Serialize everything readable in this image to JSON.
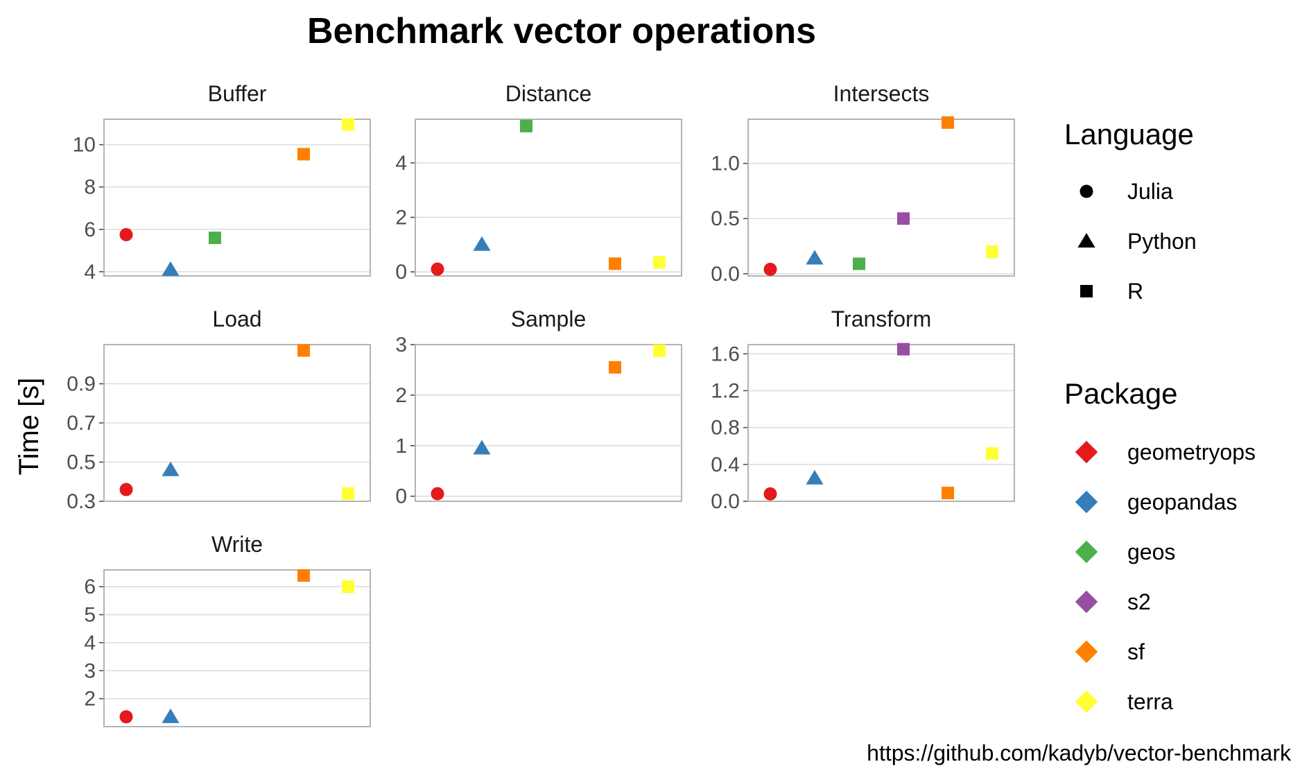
{
  "chart_data": {
    "type": "scatter",
    "title": "Benchmark vector operations",
    "ylabel": "Time [s]",
    "xlabel": "",
    "caption": "https://github.com/kadyb/vector-benchmark",
    "grid": true,
    "legend_position": "right",
    "packages": [
      "geometryops",
      "geopandas",
      "geos",
      "s2",
      "sf",
      "terra"
    ],
    "package_language": {
      "geometryops": "Julia",
      "geopandas": "Python",
      "geos": "R",
      "s2": "R",
      "sf": "R",
      "terra": "R"
    },
    "colors": {
      "geometryops": "#e41a1c",
      "geopandas": "#377eb8",
      "geos": "#4daf4a",
      "s2": "#984ea3",
      "sf": "#ff7f00",
      "terra": "#ffff33"
    },
    "legend": {
      "language": {
        "title": "Language",
        "items": [
          {
            "label": "Julia",
            "shape": "circle"
          },
          {
            "label": "Python",
            "shape": "triangle"
          },
          {
            "label": "R",
            "shape": "square"
          }
        ]
      },
      "package": {
        "title": "Package",
        "shape": "diamond",
        "items": [
          "geometryops",
          "geopandas",
          "geos",
          "s2",
          "sf",
          "terra"
        ]
      }
    },
    "panels": [
      {
        "name": "Buffer",
        "ylim": [
          3.8,
          11.2
        ],
        "yticks": [
          4,
          6,
          8,
          10
        ],
        "ytick_labels": [
          "4",
          "6",
          "8",
          "10"
        ],
        "points": [
          {
            "package": "geometryops",
            "y": 5.75
          },
          {
            "package": "geopandas",
            "y": 4.1
          },
          {
            "package": "geos",
            "y": 5.6
          },
          {
            "package": "sf",
            "y": 9.55
          },
          {
            "package": "terra",
            "y": 10.95
          }
        ]
      },
      {
        "name": "Distance",
        "ylim": [
          -0.15,
          5.6
        ],
        "yticks": [
          0,
          2,
          4
        ],
        "ytick_labels": [
          "0",
          "2",
          "4"
        ],
        "points": [
          {
            "package": "geometryops",
            "y": 0.1
          },
          {
            "package": "geopandas",
            "y": 1.0
          },
          {
            "package": "geos",
            "y": 5.35
          },
          {
            "package": "sf",
            "y": 0.3
          },
          {
            "package": "terra",
            "y": 0.35
          }
        ]
      },
      {
        "name": "Intersects",
        "ylim": [
          -0.02,
          1.4
        ],
        "yticks": [
          0.0,
          0.5,
          1.0
        ],
        "ytick_labels": [
          "0.0",
          "0.5",
          "1.0"
        ],
        "points": [
          {
            "package": "geometryops",
            "y": 0.04
          },
          {
            "package": "geopandas",
            "y": 0.14
          },
          {
            "package": "geos",
            "y": 0.09
          },
          {
            "package": "s2",
            "y": 0.5
          },
          {
            "package": "sf",
            "y": 1.37
          },
          {
            "package": "terra",
            "y": 0.2
          }
        ]
      },
      {
        "name": "Load",
        "ylim": [
          0.3,
          1.1
        ],
        "yticks": [
          0.3,
          0.5,
          0.7,
          0.9
        ],
        "ytick_labels": [
          "0.3",
          "0.5",
          "0.7",
          "0.9"
        ],
        "points": [
          {
            "package": "geometryops",
            "y": 0.36
          },
          {
            "package": "geopandas",
            "y": 0.46
          },
          {
            "package": "sf",
            "y": 1.07
          },
          {
            "package": "terra",
            "y": 0.34
          }
        ]
      },
      {
        "name": "Sample",
        "ylim": [
          -0.1,
          3.0
        ],
        "yticks": [
          0,
          1,
          2,
          3
        ],
        "ytick_labels": [
          "0",
          "1",
          "2",
          "3"
        ],
        "points": [
          {
            "package": "geometryops",
            "y": 0.05
          },
          {
            "package": "geopandas",
            "y": 0.95
          },
          {
            "package": "sf",
            "y": 2.55
          },
          {
            "package": "terra",
            "y": 2.88
          }
        ]
      },
      {
        "name": "Transform",
        "ylim": [
          0.0,
          1.7
        ],
        "yticks": [
          0.0,
          0.4,
          0.8,
          1.2,
          1.6
        ],
        "ytick_labels": [
          "0.0",
          "0.4",
          "0.8",
          "1.2",
          "1.6"
        ],
        "points": [
          {
            "package": "geometryops",
            "y": 0.08
          },
          {
            "package": "geopandas",
            "y": 0.25
          },
          {
            "package": "s2",
            "y": 1.65
          },
          {
            "package": "sf",
            "y": 0.09
          },
          {
            "package": "terra",
            "y": 0.52
          }
        ]
      },
      {
        "name": "Write",
        "ylim": [
          1.0,
          6.6
        ],
        "yticks": [
          2,
          3,
          4,
          5,
          6
        ],
        "ytick_labels": [
          "2",
          "3",
          "4",
          "5",
          "6"
        ],
        "points": [
          {
            "package": "geometryops",
            "y": 1.35
          },
          {
            "package": "geopandas",
            "y": 1.35
          },
          {
            "package": "sf",
            "y": 6.4
          },
          {
            "package": "terra",
            "y": 6.0
          }
        ]
      }
    ]
  }
}
